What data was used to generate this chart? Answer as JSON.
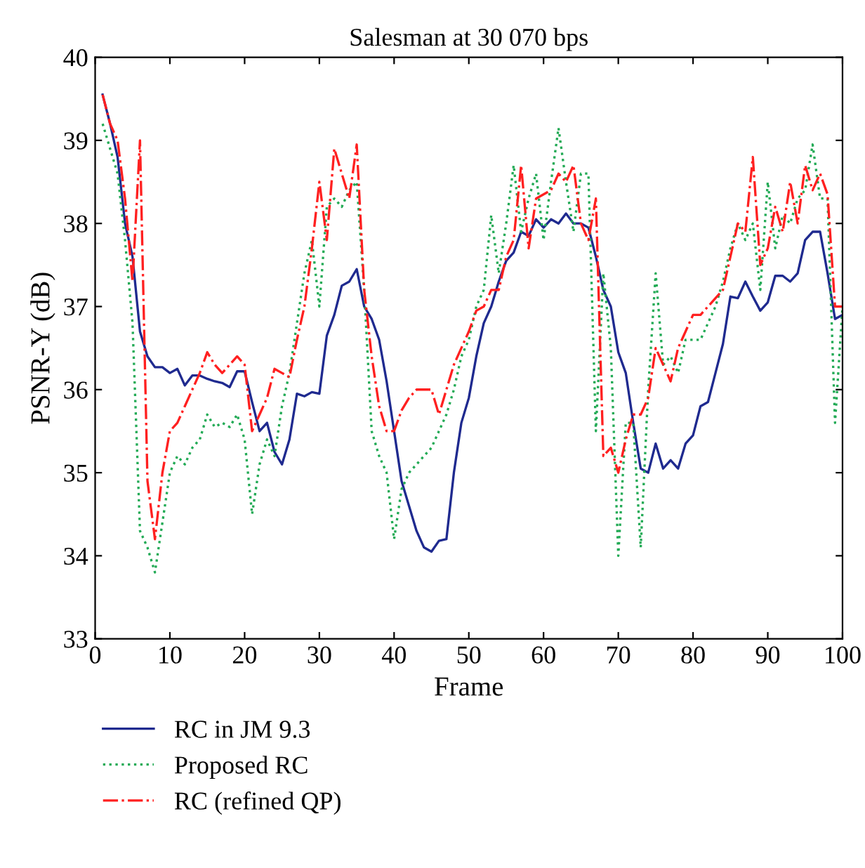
{
  "chart_data": {
    "type": "line",
    "title": "Salesman at 30 070 bps",
    "xlabel": "Frame",
    "ylabel": "PSNR-Y (dB)",
    "x": [
      1,
      2,
      3,
      4,
      5,
      6,
      7,
      8,
      9,
      10,
      11,
      12,
      13,
      14,
      15,
      16,
      17,
      18,
      19,
      20,
      21,
      22,
      23,
      24,
      25,
      26,
      27,
      28,
      29,
      30,
      31,
      32,
      33,
      34,
      35,
      36,
      37,
      38,
      39,
      40,
      41,
      42,
      43,
      44,
      45,
      46,
      47,
      48,
      49,
      50,
      51,
      52,
      53,
      54,
      55,
      56,
      57,
      58,
      59,
      60,
      61,
      62,
      63,
      64,
      65,
      66,
      67,
      68,
      69,
      70,
      71,
      72,
      73,
      74,
      75,
      76,
      77,
      78,
      79,
      80,
      81,
      82,
      83,
      84,
      85,
      86,
      87,
      88,
      89,
      90,
      91,
      92,
      93,
      94,
      95,
      96,
      97,
      98,
      99,
      100
    ],
    "series": [
      {
        "name": "RC in JM 9.3",
        "color": "#1f2a8f",
        "line_style": "solid",
        "values": [
          39.55,
          39.2,
          38.8,
          38.0,
          37.6,
          36.7,
          36.4,
          36.27,
          36.27,
          36.2,
          36.25,
          36.05,
          36.17,
          36.17,
          36.13,
          36.1,
          36.08,
          36.03,
          36.22,
          36.22,
          35.85,
          35.5,
          35.6,
          35.25,
          35.1,
          35.4,
          35.95,
          35.92,
          35.97,
          35.95,
          36.65,
          36.9,
          37.25,
          37.3,
          37.45,
          37.0,
          36.85,
          36.6,
          36.1,
          35.5,
          34.9,
          34.6,
          34.3,
          34.1,
          34.05,
          34.18,
          34.2,
          35.0,
          35.6,
          35.9,
          36.4,
          36.8,
          37.0,
          37.3,
          37.55,
          37.65,
          37.9,
          37.85,
          38.05,
          37.95,
          38.05,
          38.0,
          38.12,
          38.0,
          38.0,
          37.95,
          37.6,
          37.2,
          37.0,
          36.45,
          36.2,
          35.6,
          35.05,
          35.0,
          35.35,
          35.05,
          35.15,
          35.05,
          35.35,
          35.45,
          35.8,
          35.85,
          36.2,
          36.55,
          37.12,
          37.1,
          37.3,
          37.12,
          36.95,
          37.05,
          37.37,
          37.37,
          37.3,
          37.4,
          37.8,
          37.9,
          37.9,
          37.4,
          36.85,
          36.9
        ]
      },
      {
        "name": "Proposed RC",
        "color": "#22aa55",
        "line_style": "dotted",
        "values": [
          39.2,
          38.9,
          38.6,
          37.8,
          36.8,
          34.3,
          34.1,
          33.8,
          34.4,
          35.0,
          35.2,
          35.1,
          35.3,
          35.4,
          35.7,
          35.55,
          35.6,
          35.55,
          35.7,
          35.4,
          34.5,
          35.1,
          35.4,
          35.2,
          35.8,
          36.2,
          36.8,
          37.4,
          37.8,
          37.0,
          38.2,
          38.3,
          38.2,
          38.4,
          38.5,
          37.2,
          35.5,
          35.2,
          35.0,
          34.2,
          34.8,
          35.0,
          35.1,
          35.2,
          35.3,
          35.5,
          35.7,
          36.0,
          36.4,
          36.6,
          37.0,
          37.2,
          38.1,
          37.4,
          38.0,
          38.7,
          37.9,
          38.3,
          38.6,
          37.8,
          38.5,
          39.15,
          38.5,
          37.9,
          38.6,
          38.6,
          35.5,
          37.4,
          36.5,
          34.0,
          35.6,
          35.6,
          34.1,
          36.0,
          37.4,
          36.3,
          36.4,
          36.2,
          36.6,
          36.6,
          36.6,
          36.8,
          37.0,
          37.3,
          37.7,
          38.0,
          37.8,
          38.0,
          37.2,
          38.5,
          37.7,
          38.1,
          38.0,
          38.3,
          38.4,
          38.95,
          38.3,
          38.3,
          35.6,
          37.0
        ]
      },
      {
        "name": "RC (refined QP)",
        "color": "#ff2020",
        "line_style": "dashdot",
        "values": [
          39.55,
          39.2,
          39.0,
          38.3,
          37.3,
          39.0,
          34.9,
          34.2,
          35.0,
          35.5,
          35.6,
          35.8,
          36.0,
          36.2,
          36.45,
          36.3,
          36.2,
          36.3,
          36.4,
          36.3,
          35.5,
          35.7,
          35.9,
          36.25,
          36.2,
          36.15,
          36.6,
          37.0,
          37.7,
          38.5,
          37.8,
          38.9,
          38.6,
          38.3,
          38.95,
          37.2,
          36.4,
          35.8,
          35.5,
          35.5,
          35.75,
          35.9,
          36.0,
          36.0,
          36.0,
          35.7,
          36.0,
          36.3,
          36.5,
          36.7,
          36.95,
          37.0,
          37.2,
          37.2,
          37.6,
          37.8,
          38.7,
          37.7,
          38.3,
          38.35,
          38.4,
          38.6,
          38.5,
          38.7,
          38.0,
          37.8,
          38.3,
          35.2,
          35.3,
          35.0,
          35.4,
          35.7,
          35.7,
          35.9,
          36.5,
          36.3,
          36.1,
          36.5,
          36.7,
          36.9,
          36.9,
          37.0,
          37.1,
          37.2,
          37.6,
          38.0,
          37.9,
          38.8,
          37.5,
          37.7,
          38.2,
          37.9,
          38.5,
          38.0,
          38.7,
          38.4,
          38.6,
          38.35,
          37.0,
          37.0
        ]
      }
    ],
    "xlim": [
      0,
      100
    ],
    "xticks": [
      0,
      10,
      20,
      30,
      40,
      50,
      60,
      70,
      80,
      90,
      100
    ],
    "ylim": [
      33,
      40
    ],
    "yticks": [
      33,
      34,
      35,
      36,
      37,
      38,
      39,
      40
    ],
    "grid": false,
    "legend": "bottom",
    "marker": "none"
  }
}
